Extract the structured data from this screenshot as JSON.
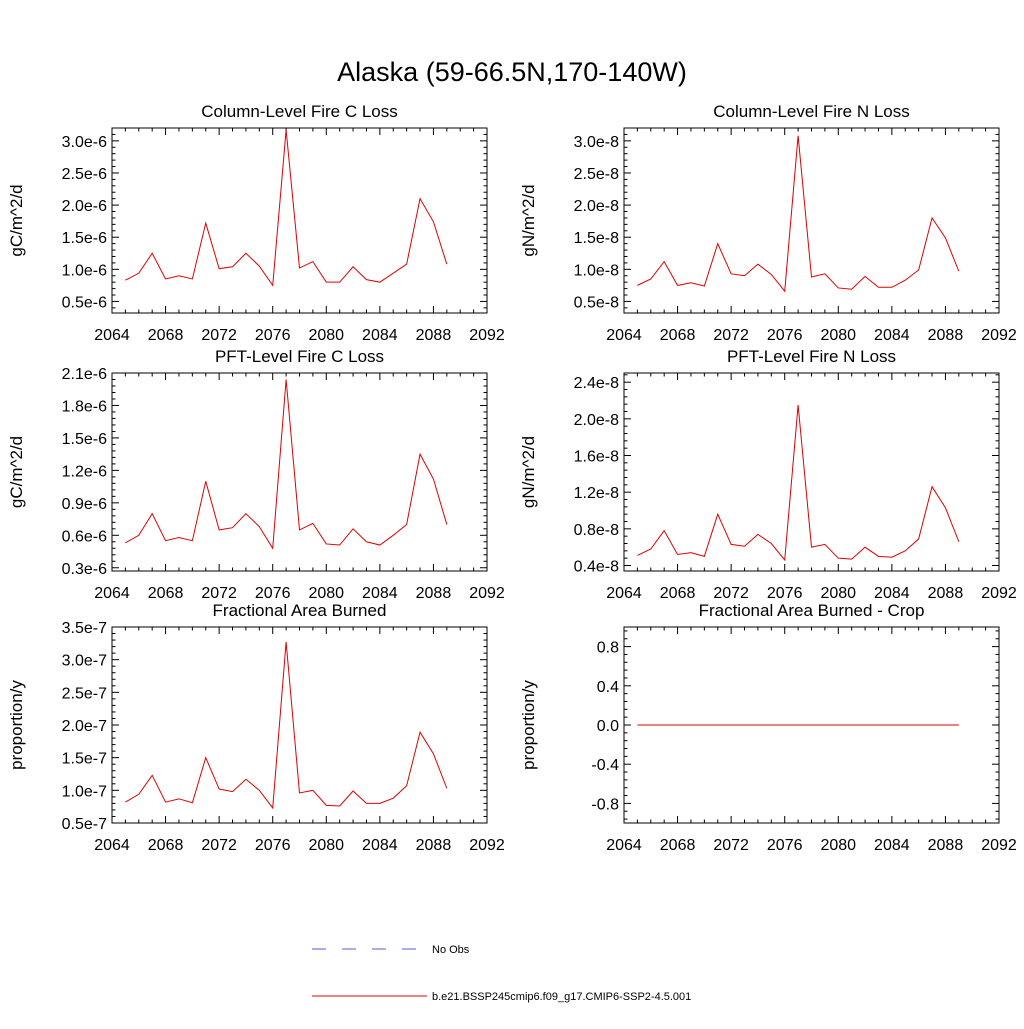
{
  "title": "Alaska (59-66.5N,170-140W)",
  "legend": {
    "entries": [
      {
        "label": "No Obs",
        "color": "#5b5bd6",
        "style": "dashed"
      },
      {
        "label": "b.e21.BSSP245cmip6.f09_g17.CMIP6-SSP2-4.5.001",
        "color": "#e00000",
        "style": "solid"
      }
    ]
  },
  "series_color": "#e00000",
  "chart_data": [
    {
      "type": "line",
      "title": "Column-Level Fire C Loss",
      "ylabel": "gC/m^2/d",
      "xlim": [
        2064,
        2092
      ],
      "xticks": [
        2064,
        2068,
        2072,
        2076,
        2080,
        2084,
        2088,
        2092
      ],
      "ylim": [
        3.2e-07,
        3.2e-06
      ],
      "yticks": [
        5e-07,
        1e-06,
        1.5e-06,
        2e-06,
        2.5e-06,
        3e-06
      ],
      "yticklabels": [
        "0.5e-6",
        "1.0e-6",
        "1.5e-6",
        "2.0e-6",
        "2.5e-6",
        "3.0e-6"
      ],
      "x": [
        2065,
        2066,
        2067,
        2068,
        2069,
        2070,
        2071,
        2072,
        2073,
        2074,
        2075,
        2076,
        2077,
        2078,
        2079,
        2080,
        2081,
        2082,
        2083,
        2084,
        2085,
        2086,
        2087,
        2088,
        2089
      ],
      "series": [
        {
          "name": "b.e21.BSSP245cmip6.f09_g17.CMIP6-SSP2-4.5.001",
          "values": [
            8.3e-07,
            9.4e-07,
            1.25e-06,
            8.5e-07,
            9e-07,
            8.5e-07,
            1.72e-06,
            1.01e-06,
            1.04e-06,
            1.25e-06,
            1.05e-06,
            7.5e-07,
            3.17e-06,
            1.02e-06,
            1.12e-06,
            8e-07,
            8e-07,
            1.04e-06,
            8.4e-07,
            8e-07,
            9.4e-07,
            1.08e-06,
            2.1e-06,
            1.74e-06,
            1.08e-06
          ]
        }
      ]
    },
    {
      "type": "line",
      "title": "Column-Level Fire N Loss",
      "ylabel": "gN/m^2/d",
      "xlim": [
        2064,
        2092
      ],
      "xticks": [
        2064,
        2068,
        2072,
        2076,
        2080,
        2084,
        2088,
        2092
      ],
      "ylim": [
        3.2e-09,
        3.2e-08
      ],
      "yticks": [
        5e-09,
        1e-08,
        1.5e-08,
        2e-08,
        2.5e-08,
        3e-08
      ],
      "yticklabels": [
        "0.5e-8",
        "1.0e-8",
        "1.5e-8",
        "2.0e-8",
        "2.5e-8",
        "3.0e-8"
      ],
      "x": [
        2065,
        2066,
        2067,
        2068,
        2069,
        2070,
        2071,
        2072,
        2073,
        2074,
        2075,
        2076,
        2077,
        2078,
        2079,
        2080,
        2081,
        2082,
        2083,
        2084,
        2085,
        2086,
        2087,
        2088,
        2089
      ],
      "series": [
        {
          "name": "b.e21.BSSP245cmip6.f09_g17.CMIP6-SSP2-4.5.001",
          "values": [
            7.5e-09,
            8.5e-09,
            1.12e-08,
            7.5e-09,
            7.9e-09,
            7.4e-09,
            1.4e-08,
            9.3e-09,
            9e-09,
            1.08e-08,
            9.2e-09,
            6.6e-09,
            3.08e-08,
            8.8e-09,
            9.3e-09,
            7.1e-09,
            6.9e-09,
            8.9e-09,
            7.2e-09,
            7.2e-09,
            8.3e-09,
            9.9e-09,
            1.8e-08,
            1.49e-08,
            9.7e-09
          ]
        }
      ]
    },
    {
      "type": "line",
      "title": "PFT-Level Fire C Loss",
      "ylabel": "gC/m^2/d",
      "xlim": [
        2064,
        2092
      ],
      "xticks": [
        2064,
        2068,
        2072,
        2076,
        2080,
        2084,
        2088,
        2092
      ],
      "ylim": [
        2.7e-07,
        2.1e-06
      ],
      "yticks": [
        3e-07,
        6e-07,
        9e-07,
        1.2e-06,
        1.5e-06,
        1.8e-06,
        2.1e-06
      ],
      "yticklabels": [
        "0.3e-6",
        "0.6e-6",
        "0.9e-6",
        "1.2e-6",
        "1.5e-6",
        "1.8e-6",
        "2.1e-6"
      ],
      "x": [
        2065,
        2066,
        2067,
        2068,
        2069,
        2070,
        2071,
        2072,
        2073,
        2074,
        2075,
        2076,
        2077,
        2078,
        2079,
        2080,
        2081,
        2082,
        2083,
        2084,
        2085,
        2086,
        2087,
        2088,
        2089
      ],
      "series": [
        {
          "name": "b.e21.BSSP245cmip6.f09_g17.CMIP6-SSP2-4.5.001",
          "values": [
            5.3e-07,
            6e-07,
            8e-07,
            5.5e-07,
            5.8e-07,
            5.5e-07,
            1.1e-06,
            6.5e-07,
            6.7e-07,
            8e-07,
            6.8e-07,
            4.8e-07,
            2.04e-06,
            6.5e-07,
            7.1e-07,
            5.2e-07,
            5.1e-07,
            6.6e-07,
            5.4e-07,
            5.1e-07,
            6e-07,
            7e-07,
            1.35e-06,
            1.12e-06,
            7e-07
          ]
        }
      ]
    },
    {
      "type": "line",
      "title": "PFT-Level Fire N Loss",
      "ylabel": "gN/m^2/d",
      "xlim": [
        2064,
        2092
      ],
      "xticks": [
        2064,
        2068,
        2072,
        2076,
        2080,
        2084,
        2088,
        2092
      ],
      "ylim": [
        3.4e-09,
        2.5e-08
      ],
      "yticks": [
        4e-09,
        8e-09,
        1.2e-08,
        1.6e-08,
        2e-08,
        2.4e-08
      ],
      "yticklabels": [
        "0.4e-8",
        "0.8e-8",
        "1.2e-8",
        "1.6e-8",
        "2.0e-8",
        "2.4e-8"
      ],
      "x": [
        2065,
        2066,
        2067,
        2068,
        2069,
        2070,
        2071,
        2072,
        2073,
        2074,
        2075,
        2076,
        2077,
        2078,
        2079,
        2080,
        2081,
        2082,
        2083,
        2084,
        2085,
        2086,
        2087,
        2088,
        2089
      ],
      "series": [
        {
          "name": "b.e21.BSSP245cmip6.f09_g17.CMIP6-SSP2-4.5.001",
          "values": [
            5.1e-09,
            5.8e-09,
            7.8e-09,
            5.2e-09,
            5.4e-09,
            5e-09,
            9.6e-09,
            6.3e-09,
            6.1e-09,
            7.4e-09,
            6.4e-09,
            4.6e-09,
            2.15e-08,
            6e-09,
            6.3e-09,
            4.8e-09,
            4.7e-09,
            6e-09,
            5e-09,
            4.9e-09,
            5.6e-09,
            6.9e-09,
            1.26e-08,
            1.03e-08,
            6.6e-09
          ]
        }
      ]
    },
    {
      "type": "line",
      "title": "Fractional Area Burned",
      "ylabel": "proportion/y",
      "xlim": [
        2064,
        2092
      ],
      "xticks": [
        2064,
        2068,
        2072,
        2076,
        2080,
        2084,
        2088,
        2092
      ],
      "ylim": [
        5e-08,
        3.5e-07
      ],
      "yticks": [
        5e-08,
        1e-07,
        1.5e-07,
        2e-07,
        2.5e-07,
        3e-07,
        3.5e-07
      ],
      "yticklabels": [
        "0.5e-7",
        "1.0e-7",
        "1.5e-7",
        "2.0e-7",
        "2.5e-7",
        "3.0e-7",
        "3.5e-7"
      ],
      "x": [
        2065,
        2066,
        2067,
        2068,
        2069,
        2070,
        2071,
        2072,
        2073,
        2074,
        2075,
        2076,
        2077,
        2078,
        2079,
        2080,
        2081,
        2082,
        2083,
        2084,
        2085,
        2086,
        2087,
        2088,
        2089
      ],
      "series": [
        {
          "name": "b.e21.BSSP245cmip6.f09_g17.CMIP6-SSP2-4.5.001",
          "values": [
            8.2e-08,
            9.4e-08,
            1.23e-07,
            8.2e-08,
            8.7e-08,
            8.1e-08,
            1.5e-07,
            1.02e-07,
            9.8e-08,
            1.17e-07,
            1e-07,
            7.3e-08,
            3.27e-07,
            9.6e-08,
            1e-07,
            7.7e-08,
            7.6e-08,
            9.9e-08,
            8e-08,
            8e-08,
            8.8e-08,
            1.07e-07,
            1.89e-07,
            1.56e-07,
            1.03e-07
          ]
        }
      ]
    },
    {
      "type": "line",
      "title": "Fractional Area Burned - Crop",
      "ylabel": "proportion/y",
      "xlim": [
        2064,
        2092
      ],
      "xticks": [
        2064,
        2068,
        2072,
        2076,
        2080,
        2084,
        2088,
        2092
      ],
      "ylim": [
        -1.0,
        1.0
      ],
      "yticks": [
        -0.8,
        -0.4,
        0.0,
        0.4,
        0.8
      ],
      "yticklabels": [
        "-0.8",
        "-0.4",
        "0.0",
        "0.4",
        "0.8"
      ],
      "x": [
        2065,
        2066,
        2067,
        2068,
        2069,
        2070,
        2071,
        2072,
        2073,
        2074,
        2075,
        2076,
        2077,
        2078,
        2079,
        2080,
        2081,
        2082,
        2083,
        2084,
        2085,
        2086,
        2087,
        2088,
        2089
      ],
      "series": [
        {
          "name": "b.e21.BSSP245cmip6.f09_g17.CMIP6-SSP2-4.5.001",
          "values": [
            0,
            0,
            0,
            0,
            0,
            0,
            0,
            0,
            0,
            0,
            0,
            0,
            0,
            0,
            0,
            0,
            0,
            0,
            0,
            0,
            0,
            0,
            0,
            0,
            0
          ]
        }
      ]
    }
  ]
}
